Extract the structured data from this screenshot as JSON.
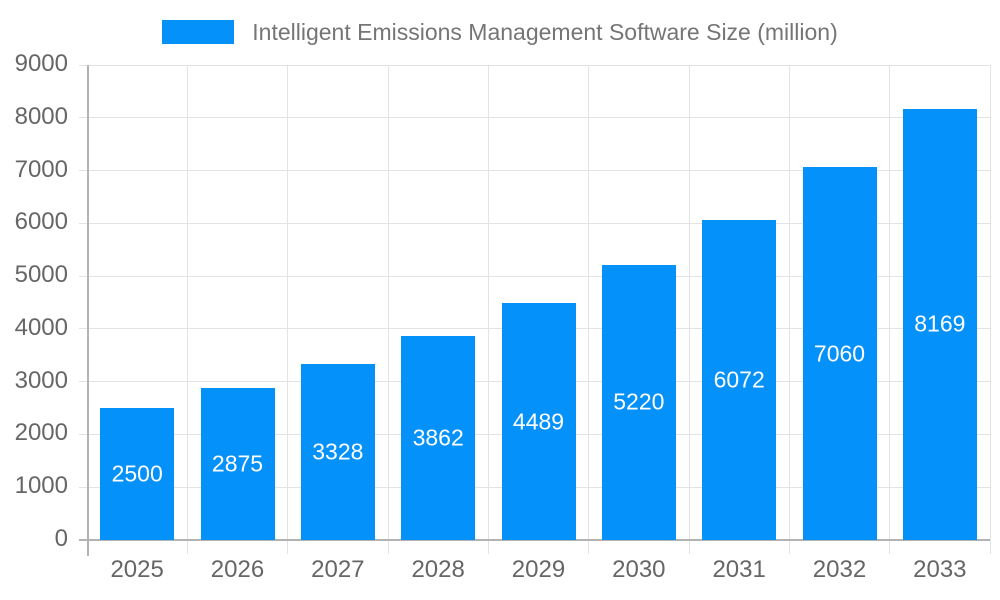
{
  "legend": {
    "label": "Intelligent Emissions Management Software Size (million)"
  },
  "chart_data": {
    "type": "bar",
    "title": "Intelligent Emissions Management Software Size (million)",
    "categories": [
      "2025",
      "2026",
      "2027",
      "2028",
      "2029",
      "2030",
      "2031",
      "2032",
      "2033"
    ],
    "values": [
      2500,
      2875,
      3328,
      3862,
      4489,
      5220,
      6072,
      7060,
      8169
    ],
    "xlabel": "",
    "ylabel": "",
    "ylim": [
      0,
      9000
    ],
    "yticks": [
      0,
      1000,
      2000,
      3000,
      4000,
      5000,
      6000,
      7000,
      8000,
      9000
    ],
    "grid": true,
    "legend_position": "top-center",
    "value_labels": "inside-center"
  },
  "colors": {
    "bar": "#0591fa",
    "grid": "#e3e3e3",
    "axis": "#b3b3b3",
    "tick_text": "#666666",
    "legend_text": "#757575",
    "value_label": "#ffffff"
  }
}
